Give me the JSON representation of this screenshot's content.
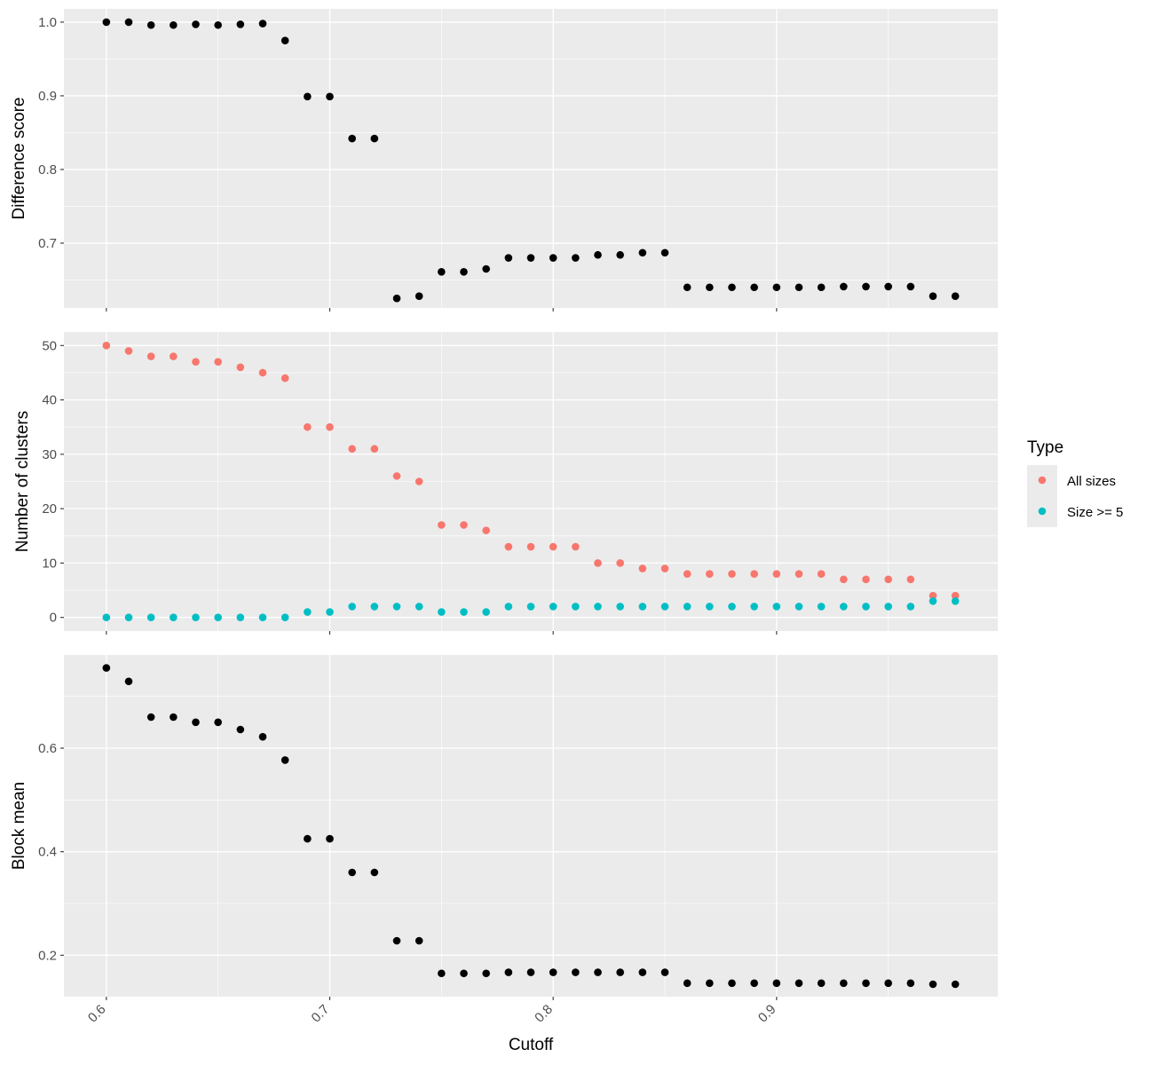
{
  "chart_data": [
    {
      "type": "scatter",
      "ylabel": "Difference score",
      "ylim": [
        0.612,
        1.018
      ],
      "y_ticks": [
        0.7,
        0.8,
        0.9,
        1.0
      ],
      "y_tick_labels": [
        "0.7",
        "0.8",
        "0.9",
        "1.0"
      ],
      "color": "#000000",
      "x": [
        0.6,
        0.61,
        0.62,
        0.63,
        0.64,
        0.65,
        0.66,
        0.67,
        0.68,
        0.69,
        0.7,
        0.71,
        0.72,
        0.73,
        0.74,
        0.75,
        0.76,
        0.77,
        0.78,
        0.79,
        0.8,
        0.81,
        0.82,
        0.83,
        0.84,
        0.85,
        0.86,
        0.87,
        0.88,
        0.89,
        0.9,
        0.91,
        0.92,
        0.93,
        0.94,
        0.95,
        0.96,
        0.97,
        0.98
      ],
      "y": [
        1.0,
        1.0,
        0.996,
        0.996,
        0.997,
        0.996,
        0.997,
        0.998,
        0.975,
        0.899,
        0.899,
        0.842,
        0.842,
        0.625,
        0.628,
        0.661,
        0.661,
        0.665,
        0.68,
        0.68,
        0.68,
        0.68,
        0.684,
        0.684,
        0.687,
        0.687,
        0.64,
        0.64,
        0.64,
        0.64,
        0.64,
        0.64,
        0.64,
        0.641,
        0.641,
        0.641,
        0.641,
        0.628,
        0.628
      ]
    },
    {
      "type": "scatter",
      "ylabel": "Number of clusters",
      "ylim": [
        -2.5,
        52.5
      ],
      "y_ticks": [
        0,
        10,
        20,
        30,
        40,
        50
      ],
      "y_tick_labels": [
        "0",
        "10",
        "20",
        "30",
        "40",
        "50"
      ],
      "x": [
        0.6,
        0.61,
        0.62,
        0.63,
        0.64,
        0.65,
        0.66,
        0.67,
        0.68,
        0.69,
        0.7,
        0.71,
        0.72,
        0.73,
        0.74,
        0.75,
        0.76,
        0.77,
        0.78,
        0.79,
        0.8,
        0.81,
        0.82,
        0.83,
        0.84,
        0.85,
        0.86,
        0.87,
        0.88,
        0.89,
        0.9,
        0.91,
        0.92,
        0.93,
        0.94,
        0.95,
        0.96,
        0.97,
        0.98
      ],
      "series": [
        {
          "name": "All sizes",
          "color": "#F8766D",
          "values": [
            50,
            49,
            48,
            48,
            47,
            47,
            46,
            45,
            44,
            35,
            35,
            31,
            31,
            26,
            25,
            17,
            17,
            16,
            13,
            13,
            13,
            13,
            10,
            10,
            9,
            9,
            8,
            8,
            8,
            8,
            8,
            8,
            8,
            7,
            7,
            7,
            7,
            4,
            4
          ]
        },
        {
          "name": "Size >= 5",
          "color": "#00BFC4",
          "values": [
            0,
            0,
            0,
            0,
            0,
            0,
            0,
            0,
            0,
            1,
            1,
            2,
            2,
            2,
            2,
            1,
            1,
            1,
            2,
            2,
            2,
            2,
            2,
            2,
            2,
            2,
            2,
            2,
            2,
            2,
            2,
            2,
            2,
            2,
            2,
            2,
            2,
            3,
            3
          ]
        }
      ]
    },
    {
      "type": "scatter",
      "ylabel": "Block mean",
      "ylim": [
        0.12,
        0.78
      ],
      "y_ticks": [
        0.2,
        0.4,
        0.6
      ],
      "y_tick_labels": [
        "0.2",
        "0.4",
        "0.6"
      ],
      "color": "#000000",
      "x": [
        0.6,
        0.61,
        0.62,
        0.63,
        0.64,
        0.65,
        0.66,
        0.67,
        0.68,
        0.69,
        0.7,
        0.71,
        0.72,
        0.73,
        0.74,
        0.75,
        0.76,
        0.77,
        0.78,
        0.79,
        0.8,
        0.81,
        0.82,
        0.83,
        0.84,
        0.85,
        0.86,
        0.87,
        0.88,
        0.89,
        0.9,
        0.91,
        0.92,
        0.93,
        0.94,
        0.95,
        0.96,
        0.97,
        0.98
      ],
      "y": [
        0.755,
        0.729,
        0.66,
        0.66,
        0.65,
        0.65,
        0.636,
        0.622,
        0.577,
        0.425,
        0.425,
        0.36,
        0.36,
        0.228,
        0.228,
        0.165,
        0.165,
        0.165,
        0.167,
        0.167,
        0.167,
        0.167,
        0.167,
        0.167,
        0.167,
        0.167,
        0.146,
        0.146,
        0.146,
        0.146,
        0.146,
        0.146,
        0.146,
        0.146,
        0.146,
        0.146,
        0.146,
        0.144,
        0.144
      ]
    }
  ],
  "x_axis": {
    "title": "Cutoff",
    "xlim": [
      0.581,
      0.999
    ],
    "ticks": [
      0.6,
      0.7,
      0.8,
      0.9
    ],
    "tick_labels": [
      "0.6",
      "0.7",
      "0.8",
      "0.9"
    ],
    "minor_ticks": [
      0.65,
      0.75,
      0.85,
      0.95
    ]
  },
  "legend": {
    "title": "Type",
    "position": "right",
    "items": [
      {
        "label": "All sizes",
        "color": "#F8766D"
      },
      {
        "label": "Size >= 5",
        "color": "#00BFC4"
      }
    ]
  },
  "grid": true,
  "panel_background": "#EBEBEB"
}
